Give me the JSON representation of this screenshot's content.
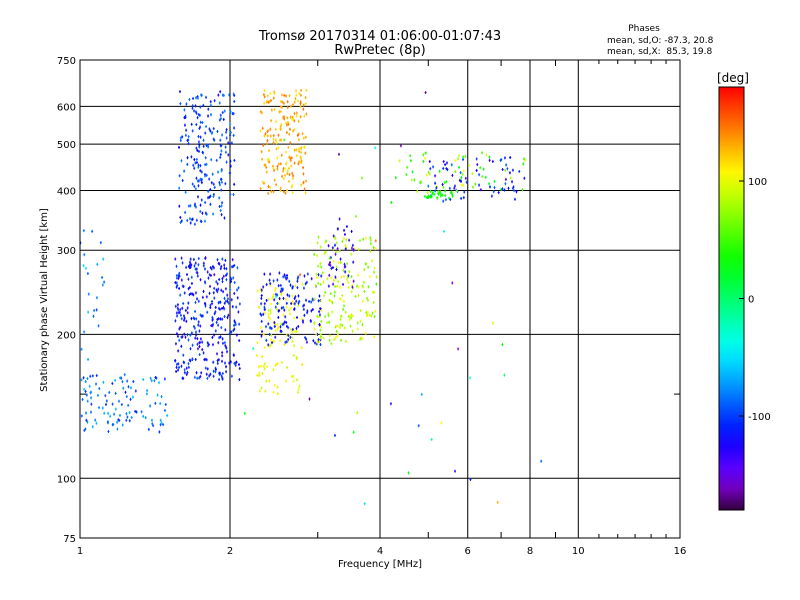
{
  "chart_data": {
    "type": "scatter",
    "title": "Tromsø 20170314 01:06:00-01:07:43",
    "subtitle": "RwPretec (8p)",
    "xlabel": "Frequency [MHz]",
    "ylabel": "Stationary phase Virtual Height [km]",
    "x_scale": "log",
    "y_scale": "log",
    "xlim": [
      1,
      16
    ],
    "ylim": [
      75,
      750
    ],
    "x_ticks": [
      1,
      2,
      4,
      6,
      8,
      10,
      16
    ],
    "x_minor_ticks": [
      3,
      5,
      7,
      9
    ],
    "y_ticks": [
      75,
      100,
      200,
      300,
      400,
      500,
      600,
      750
    ],
    "y_minor_ticks": [
      150
    ],
    "grid": true,
    "phase_stats": {
      "title": "Phases",
      "line1": "mean, sd,O: -87.3, 20.8",
      "line2": "mean, sd,X:  85.3, 19.8"
    },
    "colorbar": {
      "label": "[deg]",
      "range": [
        -180,
        180
      ],
      "ticks": [
        100,
        0,
        -100
      ],
      "colormap": "rainbow"
    },
    "point_groups": [
      {
        "x_range": [
          1.0,
          1.5
        ],
        "y_range": [
          125,
          165
        ],
        "phase_range": [
          -110,
          -60
        ],
        "count": 110
      },
      {
        "x_range": [
          1.0,
          1.12
        ],
        "y_range": [
          150,
          330
        ],
        "phase_range": [
          -100,
          -50
        ],
        "count": 25
      },
      {
        "x_range": [
          1.58,
          2.05
        ],
        "y_range": [
          340,
          650
        ],
        "phase_range": [
          -120,
          -80
        ],
        "count": 220
      },
      {
        "x_range": [
          1.55,
          2.1
        ],
        "y_range": [
          160,
          290
        ],
        "phase_range": [
          -135,
          -90
        ],
        "count": 340
      },
      {
        "x_range": [
          2.3,
          2.85
        ],
        "y_range": [
          390,
          650
        ],
        "phase_range": [
          110,
          150
        ],
        "count": 200
      },
      {
        "x_range": [
          2.25,
          2.8
        ],
        "y_range": [
          150,
          260
        ],
        "phase_range": [
          85,
          115
        ],
        "count": 110
      },
      {
        "x_range": [
          2.3,
          3.05
        ],
        "y_range": [
          190,
          270
        ],
        "phase_range": [
          -130,
          -95
        ],
        "count": 150
      },
      {
        "x_range": [
          2.95,
          3.95
        ],
        "y_range": [
          190,
          320
        ],
        "phase_range": [
          60,
          110
        ],
        "count": 180
      },
      {
        "x_range": [
          3.15,
          3.55
        ],
        "y_range": [
          250,
          350
        ],
        "phase_range": [
          -150,
          -110
        ],
        "count": 40
      },
      {
        "x_range": [
          4.3,
          7.9
        ],
        "y_range": [
          395,
          480
        ],
        "phase_range": [
          15,
          110
        ],
        "count": 60
      },
      {
        "x_range": [
          5.0,
          7.8
        ],
        "y_range": [
          380,
          470
        ],
        "phase_range": [
          -140,
          -85
        ],
        "count": 70
      },
      {
        "x_range": [
          4.9,
          5.6
        ],
        "y_range": [
          385,
          400
        ],
        "phase_range": [
          20,
          40
        ],
        "count": 30
      },
      {
        "x_range": [
          2.1,
          8.5
        ],
        "y_range": [
          85,
          650
        ],
        "phase_range": [
          -170,
          160
        ],
        "count": 40
      }
    ]
  }
}
